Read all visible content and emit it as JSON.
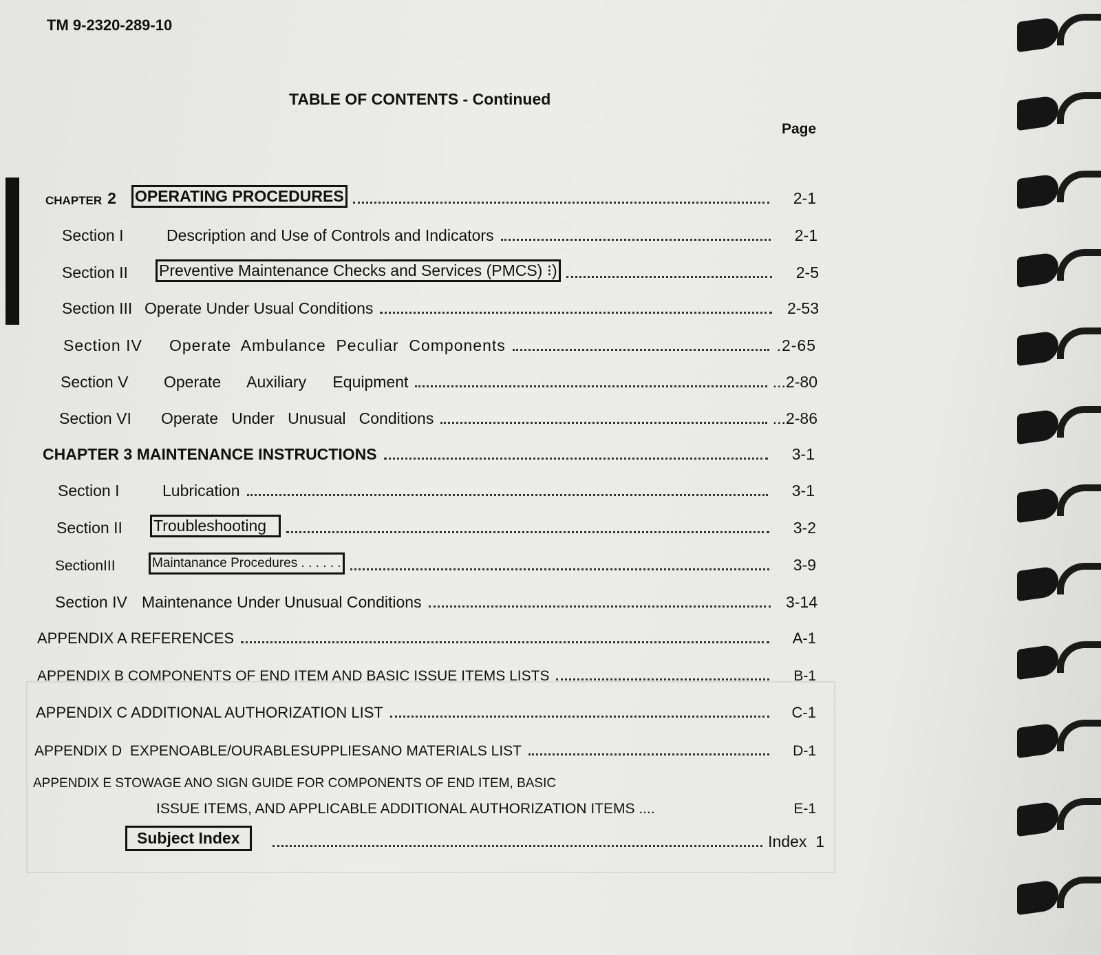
{
  "header": {
    "doc_number": "TM  9-2320-289-10"
  },
  "title": "TABLE OF CONTENTS - Continued",
  "page_column_label": "Page",
  "chapter2": {
    "label": "CHAPTER",
    "number": "2",
    "title": "OPERATING PROCEDURES",
    "page": "2-1",
    "sections": [
      {
        "label": "Section  I",
        "title": "Description and Use of Controls and Indicators",
        "page": "2-1"
      },
      {
        "label": "Section  II",
        "title": "Preventive Maintenance Checks and Services (PMCS) ⁝)",
        "page": "2-5"
      },
      {
        "label": "Section  III",
        "title": "Operate Under Usual Conditions",
        "page": "2-53"
      },
      {
        "label": "Section  IV",
        "title": "Operate  Ambulance  Peculiar  Components",
        "page": ".2-65"
      },
      {
        "label": "Section  V",
        "title": "Operate      Auxiliary      Equipment",
        "page": "...2-80"
      },
      {
        "label": "Section  VI",
        "title": "Operate   Under   Unusual   Conditions",
        "page": "...2-86"
      }
    ]
  },
  "chapter3": {
    "title": "CHAPTER 3 MAINTENANCE INSTRUCTIONS",
    "page": "3-1",
    "sections": [
      {
        "label": "Section  I",
        "title": "Lubrication",
        "page": "3-1"
      },
      {
        "label": "Section  II",
        "title": "Troubleshooting",
        "page": "3-2"
      },
      {
        "label": "SectionIII",
        "title": "Maintanance Procedures . . . . . .",
        "page": "3-9"
      },
      {
        "label": "Section  IV",
        "title": "Maintenance Under Unusual Conditions",
        "page": "3-14"
      }
    ]
  },
  "appendices": [
    {
      "title": "APPENDIX A REFERENCES",
      "page": "A-1"
    },
    {
      "title": "APPENDIX B COMPONENTS OF END ITEM AND BASIC ISSUE ITEMS LISTS",
      "page": "B-1"
    },
    {
      "title": "APPENDIX C ADDITIONAL AUTHORIZATION LIST",
      "page": "C-1"
    },
    {
      "title": "APPENDIX D  EXPENOABLE/OURABLESUPPLIESANO MATERIALS LIST",
      "page": "D-1"
    },
    {
      "title": "APPENDIX E STOWAGE ANO SIGN GUIDE FOR COMPONENTS OF END ITEM, BASIC",
      "title_line2": "ISSUE ITEMS, AND APPLICABLE ADDITIONAL AUTHORIZATION ITEMS ....",
      "page": "E-1"
    }
  ],
  "subject_index": {
    "title": "Subject Index",
    "page": "Index  1"
  }
}
